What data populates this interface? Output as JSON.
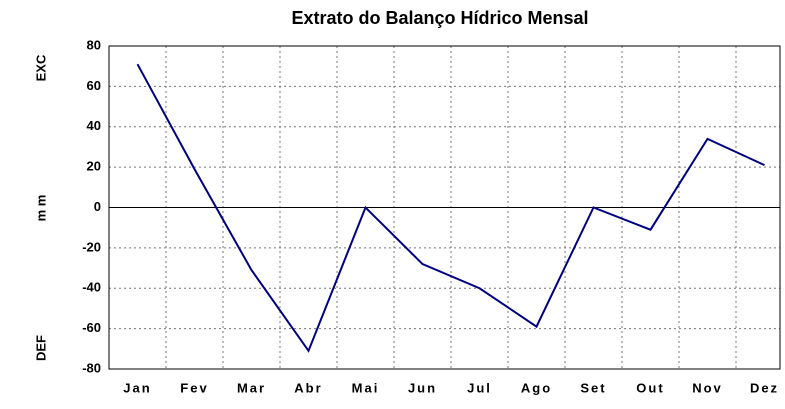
{
  "chart_data": {
    "type": "line",
    "title": "Extrato do Balanço Hídrico Mensal",
    "y_label": "m m",
    "annotations": [
      "EXC",
      "DEF"
    ],
    "categories": [
      "Jan",
      "Fev",
      "Mar",
      "Abr",
      "Mai",
      "Jun",
      "Jul",
      "Ago",
      "Set",
      "Out",
      "Nov",
      "Dez"
    ],
    "values": [
      71,
      19,
      -31,
      -71,
      0,
      -28,
      -40,
      -59,
      0,
      -11,
      34,
      21
    ],
    "color": "#000080",
    "ylim": [
      -80,
      80
    ],
    "yticks": [
      -80,
      -60,
      -40,
      -20,
      0,
      20,
      40,
      60,
      80
    ],
    "grid": true
  }
}
